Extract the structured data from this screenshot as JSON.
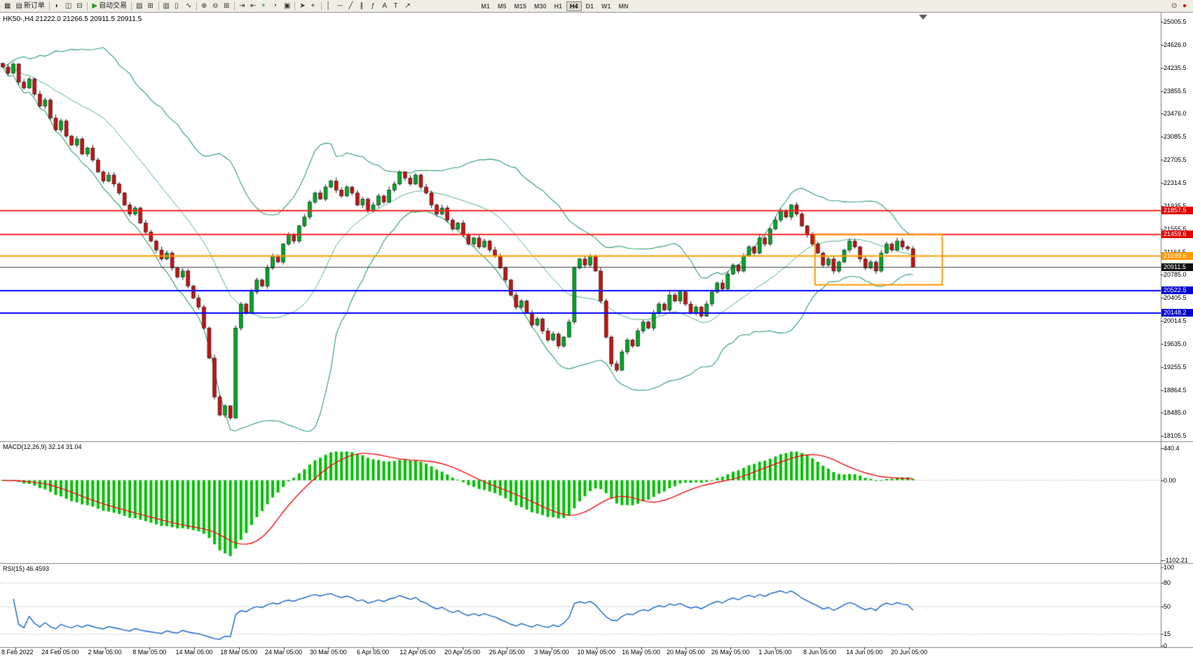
{
  "toolbar": {
    "items": [
      {
        "name": "new-chart-icon",
        "glyph": "▦"
      },
      {
        "name": "new-order-button",
        "glyph": "▤",
        "label": "新订单"
      },
      {
        "name": "separator"
      },
      {
        "name": "gauge-icon",
        "glyph": "◑"
      },
      {
        "name": "chart-window-icon",
        "glyph": "◫"
      },
      {
        "name": "chart-list-icon",
        "glyph": "⊟"
      },
      {
        "name": "separator"
      },
      {
        "name": "autotrade-button",
        "glyph": "▶",
        "glyph_color": "#1a9c1a",
        "label": "自动交易"
      },
      {
        "name": "separator"
      },
      {
        "name": "profile-icon",
        "glyph": "▧"
      },
      {
        "name": "add-chart-icon",
        "glyph": "⊞"
      },
      {
        "name": "separator"
      },
      {
        "name": "bar-chart-icon",
        "glyph": "▥"
      },
      {
        "name": "candlestick-chart-icon",
        "glyph": "▯"
      },
      {
        "name": "line-chart-icon",
        "glyph": "∿"
      },
      {
        "name": "separator"
      },
      {
        "name": "zoom-in-icon",
        "glyph": "⊕"
      },
      {
        "name": "zoom-out-icon",
        "glyph": "⊖"
      },
      {
        "name": "tile-windows-icon",
        "glyph": "⊞"
      },
      {
        "name": "separator"
      },
      {
        "name": "auto-scroll-icon",
        "glyph": "⇥"
      },
      {
        "name": "chart-shift-icon",
        "glyph": "⇤"
      },
      {
        "name": "indicators-add-icon",
        "glyph": "+",
        "glyph_color": "#0a8a0a"
      },
      {
        "name": "periods-icon",
        "glyph": "◔"
      },
      {
        "name": "templates-icon",
        "glyph": "▣"
      },
      {
        "name": "separator"
      },
      {
        "name": "cursor-icon",
        "glyph": "➤"
      },
      {
        "name": "crosshair-icon",
        "glyph": "+"
      },
      {
        "name": "separator"
      },
      {
        "name": "vertical-line-icon",
        "glyph": "│"
      },
      {
        "name": "horizontal-line-icon",
        "glyph": "─"
      },
      {
        "name": "trendline-icon",
        "glyph": "╱"
      },
      {
        "name": "channel-icon",
        "glyph": "∥"
      },
      {
        "name": "fibonacci-icon",
        "glyph": "ƒ"
      },
      {
        "name": "text-icon",
        "glyph": "A"
      },
      {
        "name": "label-icon",
        "glyph": "T"
      },
      {
        "name": "arrows-icon",
        "glyph": "↗"
      },
      {
        "name": "gap"
      }
    ],
    "timeframes": [
      "M1",
      "M5",
      "M15",
      "M30",
      "H1",
      "H4",
      "D1",
      "W1",
      "MN"
    ],
    "active_timeframe": "H4",
    "right_items": [
      {
        "name": "search-icon",
        "glyph": "⊙"
      },
      {
        "name": "record-icon",
        "glyph": "●",
        "glyph_color": "#e00000"
      }
    ]
  },
  "chart": {
    "symbol": "HK50-",
    "period": "H4",
    "ohlc_label": "HK50-,H4  21222.0 21266.5 20911.5 20911.5",
    "price_axis_labels": [
      "25005.5",
      "24626.0",
      "24235.5",
      "23855.5",
      "23476.0",
      "23085.5",
      "22705.5",
      "22314.5",
      "21935.5",
      "21555.5",
      "21164.5",
      "20785.0",
      "20405.5",
      "20014.5",
      "19635.0",
      "19255.5",
      "18864.5",
      "18485.0",
      "18105.5"
    ],
    "price_axis_top": 25005.5,
    "price_axis_bottom": 18105.5,
    "levels": [
      {
        "label": "21857.5",
        "price": 21857.5,
        "color": "#ff2222",
        "badge": "#e00000",
        "width": 2
      },
      {
        "label": "21459.6",
        "price": 21459.6,
        "color": "#ff2222",
        "badge": "#e00000",
        "width": 2
      },
      {
        "label": "21099.6",
        "price": 21099.6,
        "color": "#ff9900",
        "badge": "#ff9900",
        "width": 2
      },
      {
        "label": "20911.5",
        "price": 20911.5,
        "color": "#333333",
        "badge": "#111111",
        "width": 1
      },
      {
        "label": "20522.5",
        "price": 20522.5,
        "color": "#0000ff",
        "badge": "#0000cc",
        "width": 2
      },
      {
        "label": "20148.2",
        "price": 20148.2,
        "color": "#0000ff",
        "badge": "#0000cc",
        "width": 2
      }
    ],
    "rectangle": {
      "start_bar": 154,
      "end_bar": 177,
      "price_top": 21460,
      "price_bottom": 20620,
      "color": "#ff9900"
    },
    "time_axis_labels": [
      "8 Feb 2022",
      "24 Feb 05:00",
      "2 Mar 05:00",
      "8 Mar 05:00",
      "14 Mar 05:00",
      "18 Mar 05:00",
      "24 Mar 05:00",
      "30 Mar 05:00",
      "6 Apr 05:00",
      "12 Apr 05:00",
      "20 Apr 05:00",
      "26 Apr 05:00",
      "3 May 05:00",
      "10 May 05:00",
      "16 May 05:00",
      "20 May 05:00",
      "26 May 05:00",
      "1 Jun 05:00",
      "8 Jun 05:00",
      "14 Jun 05:00",
      "20 Jun 05:00"
    ]
  },
  "macd": {
    "label": "MACD(12,26,9) 32.14 31.04",
    "scale_labels": [
      "440.4",
      "0.00",
      "-1102.21"
    ],
    "max": 440.4,
    "min": -1102.21
  },
  "rsi": {
    "label": "RSI(15) 46.4593",
    "scale_labels": [
      "100",
      "80",
      "50",
      "15",
      "0"
    ],
    "scale_values": [
      100,
      80,
      50,
      15,
      0
    ],
    "dotted_levels": [
      80,
      50,
      15
    ]
  },
  "chart_data": {
    "type": "candlestick",
    "symbol": "HK50-",
    "timeframe": "H4",
    "title": "HK50-,H4",
    "ylim": [
      18105.5,
      25005.5
    ],
    "closes": [
      24250,
      24150,
      24300,
      24000,
      23900,
      24050,
      23800,
      23600,
      23700,
      23400,
      23200,
      23350,
      23100,
      22950,
      23050,
      22800,
      22900,
      22700,
      22500,
      22350,
      22450,
      22300,
      22150,
      21950,
      21800,
      21900,
      21650,
      21500,
      21350,
      21200,
      21050,
      21150,
      20900,
      20750,
      20850,
      20600,
      20400,
      20250,
      19900,
      19400,
      18750,
      18450,
      18600,
      18400,
      19900,
      20300,
      20150,
      20500,
      20700,
      20600,
      20900,
      21100,
      21000,
      21300,
      21450,
      21350,
      21600,
      21750,
      22000,
      22150,
      22050,
      22250,
      22350,
      22200,
      22100,
      22250,
      22150,
      21950,
      22050,
      21850,
      21950,
      22100,
      22000,
      22200,
      22300,
      22500,
      22400,
      22300,
      22450,
      22250,
      22150,
      21950,
      21800,
      21900,
      21700,
      21550,
      21650,
      21450,
      21300,
      21400,
      21250,
      21350,
      21200,
      21100,
      20900,
      20700,
      20450,
      20250,
      20350,
      20150,
      19950,
      20050,
      19850,
      19700,
      19800,
      19600,
      19750,
      20000,
      20900,
      21050,
      20950,
      21100,
      20850,
      20350,
      19750,
      19300,
      19200,
      19500,
      19700,
      19600,
      19850,
      20000,
      19900,
      20150,
      20300,
      20200,
      20450,
      20350,
      20500,
      20300,
      20150,
      20250,
      20100,
      20300,
      20500,
      20650,
      20550,
      20800,
      20950,
      20850,
      21100,
      21250,
      21150,
      21400,
      21300,
      21550,
      21700,
      21850,
      21750,
      21950,
      21800,
      21600,
      21450,
      21300,
      21150,
      20950,
      21050,
      20850,
      21000,
      21200,
      21350,
      21250,
      21050,
      20900,
      21000,
      20850,
      21150,
      21300,
      21200,
      21350,
      21250,
      21222,
      20911.5
    ],
    "last_ohlc": {
      "open": 21222.0,
      "high": 21266.5,
      "low": 20911.5,
      "close": 20911.5
    },
    "indicators": {
      "bollinger": {
        "period": 20,
        "deviation": 2
      },
      "macd": {
        "fast": 12,
        "slow": 26,
        "signal": 9,
        "current": [
          32.14,
          31.04
        ]
      },
      "rsi": {
        "period": 15,
        "current": 46.4593
      }
    },
    "colors": {
      "up": "#00a626",
      "down": "#c21414",
      "wick": "#1a1a1a",
      "bands": "#2e9e6b",
      "macd_hist": "#00c000",
      "macd_signal": "#ee1111",
      "rsi_line": "#1566c8"
    }
  }
}
